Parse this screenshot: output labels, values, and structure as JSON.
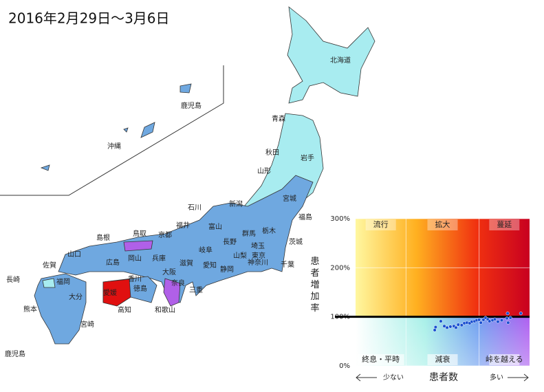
{
  "title": "2016年2月29日～3月6日",
  "prefectures": [
    "北海道",
    "鹿児島",
    "沖縄",
    "青森",
    "秋田",
    "岩手",
    "山形",
    "宮城",
    "新潟",
    "石川",
    "福島",
    "富山",
    "福井",
    "群馬",
    "栃木",
    "茨城",
    "島根",
    "鳥取",
    "京都",
    "長野",
    "埼玉",
    "山口",
    "岡山",
    "兵庫",
    "岐阜",
    "山梨",
    "東京",
    "佐賀",
    "広島",
    "滋賀",
    "愛知",
    "神奈川",
    "千葉",
    "長崎",
    "福岡",
    "香川",
    "大阪",
    "静岡",
    "大分",
    "愛媛",
    "徳島",
    "奈良",
    "三重",
    "熊本",
    "高知",
    "和歌山",
    "宮崎",
    "鹿児島"
  ],
  "chart_data": {
    "type": "scatter",
    "y_label": "患者増加率",
    "x_label": "患者数",
    "x_low": "少ない",
    "x_high": "多い",
    "quadrants": [
      "流行",
      "拡大",
      "蔓延",
      "終息・平時",
      "減衰",
      "峠を越える"
    ],
    "ylim": [
      0,
      300
    ],
    "yticks": [
      {
        "value": 0,
        "label": "0%"
      },
      {
        "value": 100,
        "label": "100%"
      },
      {
        "value": 200,
        "label": "200%"
      },
      {
        "value": 300,
        "label": "300%"
      }
    ],
    "reference_y": 100,
    "xlim": [
      0,
      100
    ],
    "color": "#1a4fd0",
    "x": [
      45.5,
      46,
      49,
      51,
      52.6,
      54.5,
      56.5,
      57.7,
      59,
      61,
      62.5,
      64,
      65.6,
      66.8,
      68.4,
      69.6,
      71,
      72,
      73.5,
      74.7,
      76,
      77,
      78.7,
      80,
      81.8,
      84,
      87,
      87.4,
      89,
      95,
      87.7
    ],
    "values": [
      73,
      79,
      91,
      81,
      78,
      80,
      81,
      78,
      84,
      83,
      87,
      88,
      87,
      90,
      91,
      93,
      94,
      88,
      94,
      98,
      95,
      91,
      93,
      95,
      90,
      93,
      97,
      107,
      98,
      107,
      88
    ]
  }
}
